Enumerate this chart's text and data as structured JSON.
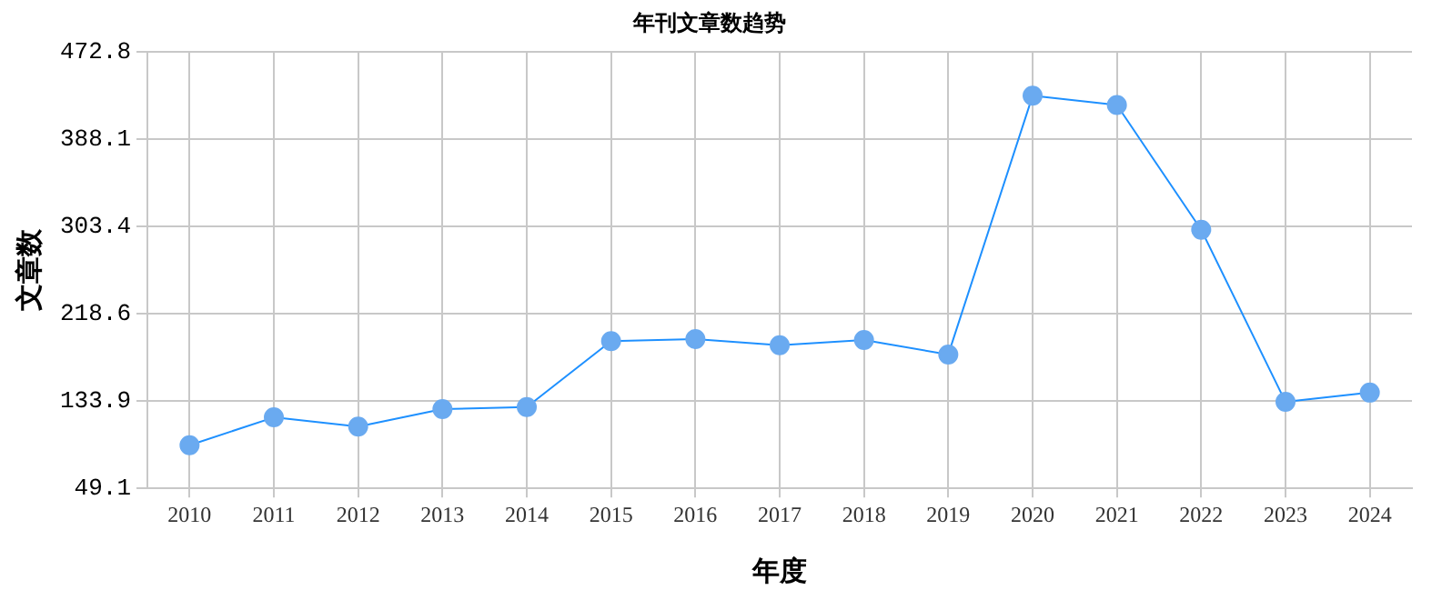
{
  "chart_data": {
    "type": "line",
    "title": "年刊文章数趋势",
    "xlabel": "年度",
    "ylabel": "文章数",
    "categories": [
      "2010",
      "2011",
      "2012",
      "2013",
      "2014",
      "2015",
      "2016",
      "2017",
      "2018",
      "2019",
      "2020",
      "2021",
      "2022",
      "2023",
      "2024"
    ],
    "series": [
      {
        "color": "#1e90ff",
        "values": [
          91,
          118,
          109,
          126,
          128,
          192,
          194,
          188,
          193,
          179,
          430,
          421,
          300,
          133,
          142
        ]
      }
    ],
    "ylim": [
      49.1,
      472.8
    ],
    "yticks": [
      49.1,
      133.9,
      218.6,
      303.4,
      388.1,
      472.8
    ],
    "grid": true,
    "legend": false,
    "marker": "circle",
    "line_style": "solid"
  }
}
